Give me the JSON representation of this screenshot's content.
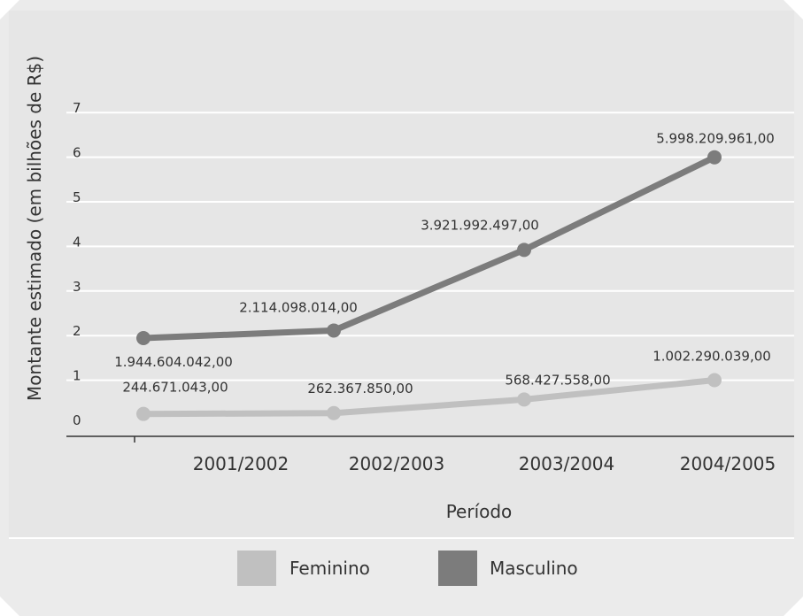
{
  "chart_data": {
    "type": "line",
    "categories": [
      "2001/2002",
      "2002/2003",
      "2003/2004",
      "2004/2005"
    ],
    "xlabel": "Período",
    "ylabel": "Montante estimado (em bilhões de R$)",
    "yticks": [
      "0",
      "1",
      "2",
      "3",
      "4",
      "5",
      "6",
      "7"
    ],
    "ylim": [
      0,
      7
    ],
    "grid": true,
    "legend_position": "bottom",
    "series": [
      {
        "name": "Feminino",
        "color": "#c0c0c0",
        "values": [
          0.244671043,
          0.26236785,
          0.568427558,
          1.002290039
        ],
        "labels": [
          "244.671.043,00",
          "262.367.850,00",
          "568.427.558,00",
          "1.002.290.039,00"
        ]
      },
      {
        "name": "Masculino",
        "color": "#7c7c7c",
        "values": [
          1.944604042,
          2.114098014,
          3.921992497,
          5.998209961
        ],
        "labels": [
          "1.944.604.042,00",
          "2.114.098.014,00",
          "3.921.992.497,00",
          "5.998.209.961,00"
        ]
      }
    ],
    "colors": {
      "background": "#ebebeb",
      "plot_area": "#e6e6e6",
      "gridline": "#ffffff",
      "axis": "#333333"
    }
  }
}
